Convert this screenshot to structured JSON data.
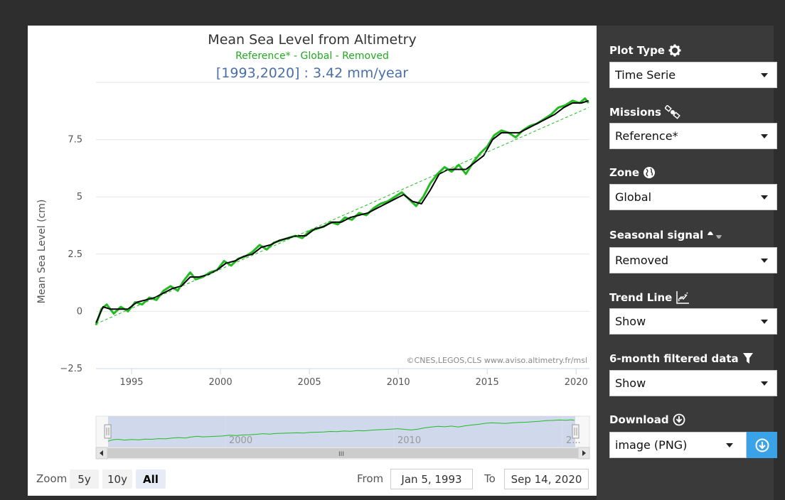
{
  "chart": {
    "title": "Mean Sea Level from Altimetry",
    "subtitle": "Reference* - Global - Removed",
    "trend_text": "[1993,2020] : 3.42 mm/year",
    "credits": "©CNES,LEGOS,CLS www.aviso.altimetry.fr/msl"
  },
  "chart_data": {
    "type": "line",
    "title": "Mean Sea Level from Altimetry",
    "subtitle": "Reference* - Global - Removed",
    "xlabel": "",
    "ylabel": "Mean Sea Level (cm)",
    "xlim": [
      1993.0,
      2020.75
    ],
    "ylim": [
      -2.5,
      10
    ],
    "y_ticks": [
      -2.5,
      0,
      2.5,
      5,
      7.5
    ],
    "y_tick_labels": [
      "−2.5",
      "0",
      "2.5",
      "5",
      "7.5"
    ],
    "x_ticks": [
      1995,
      2000,
      2005,
      2010,
      2015,
      2020
    ],
    "x_tick_labels": [
      "1995",
      "2000",
      "2005",
      "2010",
      "2015",
      "2020"
    ],
    "grid": true,
    "legend": "none",
    "series": [
      {
        "name": "Mean Sea Level",
        "color": "#22bb22",
        "x": [
          1993.0,
          1993.3,
          1993.6,
          1994.0,
          1994.4,
          1994.8,
          1995.2,
          1995.6,
          1996.0,
          1996.4,
          1996.8,
          1997.2,
          1997.6,
          1997.9,
          1998.3,
          1998.6,
          1999.0,
          1999.4,
          1999.8,
          2000.2,
          2000.6,
          2001.0,
          2001.4,
          2001.8,
          2002.2,
          2002.6,
          2003.0,
          2003.4,
          2003.8,
          2004.2,
          2004.6,
          2005.0,
          2005.4,
          2005.8,
          2006.2,
          2006.6,
          2007.0,
          2007.4,
          2007.8,
          2008.2,
          2008.6,
          2009.0,
          2009.4,
          2009.8,
          2010.2,
          2010.6,
          2011.0,
          2011.4,
          2011.8,
          2012.2,
          2012.6,
          2013.0,
          2013.4,
          2013.8,
          2014.2,
          2014.6,
          2015.0,
          2015.4,
          2015.8,
          2016.2,
          2016.6,
          2017.0,
          2017.4,
          2017.8,
          2018.2,
          2018.6,
          2019.0,
          2019.4,
          2019.8,
          2020.2,
          2020.5,
          2020.7
        ],
        "values": [
          -0.6,
          0.1,
          0.3,
          -0.1,
          0.2,
          0.0,
          0.4,
          0.3,
          0.6,
          0.5,
          0.9,
          1.1,
          0.9,
          1.3,
          1.7,
          1.4,
          1.5,
          1.7,
          1.8,
          2.2,
          2.0,
          2.3,
          2.4,
          2.6,
          2.9,
          2.7,
          3.0,
          3.1,
          3.2,
          3.3,
          3.2,
          3.5,
          3.6,
          3.7,
          3.9,
          3.8,
          4.1,
          4.0,
          4.3,
          4.2,
          4.5,
          4.7,
          4.8,
          5.0,
          5.2,
          4.9,
          4.6,
          5.0,
          5.6,
          6.0,
          6.3,
          6.1,
          6.4,
          6.0,
          6.5,
          6.9,
          7.2,
          7.7,
          7.9,
          7.8,
          7.6,
          7.9,
          8.1,
          8.2,
          8.4,
          8.6,
          8.9,
          9.0,
          9.2,
          9.1,
          9.3,
          9.1
        ]
      },
      {
        "name": "6-month filtered data",
        "color": "#000000",
        "x": [
          1993.0,
          1993.4,
          1993.8,
          1994.3,
          1994.8,
          1995.3,
          1995.8,
          1996.3,
          1996.8,
          1997.3,
          1997.8,
          1998.3,
          1998.8,
          1999.3,
          1999.8,
          2000.3,
          2000.8,
          2001.3,
          2001.8,
          2002.3,
          2002.8,
          2003.3,
          2003.8,
          2004.3,
          2004.8,
          2005.3,
          2005.8,
          2006.3,
          2006.8,
          2007.3,
          2007.8,
          2008.3,
          2008.8,
          2009.3,
          2009.8,
          2010.3,
          2010.8,
          2011.3,
          2011.8,
          2012.3,
          2012.8,
          2013.3,
          2013.8,
          2014.3,
          2014.8,
          2015.3,
          2015.8,
          2016.3,
          2016.8,
          2017.3,
          2017.8,
          2018.3,
          2018.8,
          2019.3,
          2019.8,
          2020.3,
          2020.7
        ],
        "values": [
          -0.5,
          0.2,
          0.1,
          0.1,
          0.1,
          0.4,
          0.5,
          0.6,
          0.8,
          1.0,
          1.1,
          1.5,
          1.5,
          1.6,
          1.8,
          2.1,
          2.2,
          2.4,
          2.5,
          2.8,
          2.9,
          3.1,
          3.2,
          3.3,
          3.3,
          3.6,
          3.7,
          3.9,
          3.9,
          4.1,
          4.2,
          4.3,
          4.5,
          4.7,
          4.9,
          5.1,
          4.8,
          4.7,
          5.3,
          6.0,
          6.2,
          6.2,
          6.2,
          6.5,
          6.8,
          7.5,
          7.8,
          7.8,
          7.8,
          8.0,
          8.2,
          8.4,
          8.6,
          8.9,
          9.1,
          9.1,
          9.2
        ]
      },
      {
        "name": "Trend Line",
        "color": "#22bb22",
        "dashed": true,
        "x": [
          1993.0,
          2020.7
        ],
        "values": [
          -0.55,
          8.9
        ]
      }
    ]
  },
  "navigator": {
    "labels": [
      "2000",
      "2010",
      "2..."
    ],
    "scroll_grip": "III"
  },
  "zoom": {
    "label": "Zoom",
    "buttons": [
      "5y",
      "10y",
      "All"
    ],
    "active": "All"
  },
  "range": {
    "from_label": "From",
    "from_value": "Jan 5, 1993",
    "to_label": "To",
    "to_value": "Sep 14, 2020"
  },
  "controls": {
    "plot_type": {
      "label": "Plot Type",
      "value": "Time Serie",
      "icon": "gear-icon"
    },
    "missions": {
      "label": "Missions",
      "value": "Reference*",
      "icon": "satellite-icon"
    },
    "zone": {
      "label": "Zone",
      "value": "Global",
      "icon": "globe-icon"
    },
    "seasonal": {
      "label": "Seasonal signal",
      "value": "Removed",
      "icon": "wave-icon"
    },
    "trend": {
      "label": "Trend Line",
      "value": "Show",
      "icon": "trend-chart-icon"
    },
    "filtered": {
      "label": "6-month filtered data",
      "value": "Show",
      "icon": "filter-icon"
    },
    "download": {
      "label": "Download",
      "value": "image (PNG)",
      "icon": "download-icon"
    }
  },
  "colors": {
    "accent": "#3aa3e8",
    "panel_bg": "#3a3a3a",
    "page_bg": "#2e2e2e",
    "series_green": "#22bb22",
    "trend_text": "#4a6fa5"
  }
}
